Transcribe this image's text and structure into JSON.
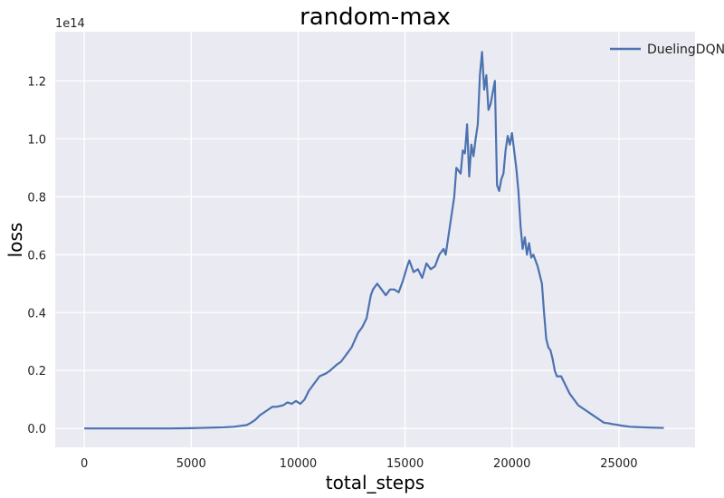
{
  "chart_data": {
    "type": "line",
    "title": "random-max",
    "xlabel": "total_steps",
    "ylabel": "loss",
    "y_offset_label": "1e14",
    "xlim": [
      -1360,
      28560
    ],
    "ylim": [
      -0.065,
      1.37
    ],
    "x_ticks": [
      0,
      5000,
      10000,
      15000,
      20000,
      25000
    ],
    "x_tick_labels": [
      "0",
      "5000",
      "10000",
      "15000",
      "20000",
      "25000"
    ],
    "y_ticks": [
      0.0,
      0.2,
      0.4,
      0.6,
      0.8,
      1.0,
      1.2
    ],
    "y_tick_labels": [
      "0.0",
      "0.2",
      "0.4",
      "0.6",
      "0.8",
      "1.0",
      "1.2"
    ],
    "grid": true,
    "legend_position": "top-right",
    "series": [
      {
        "name": "DuelingDQN",
        "color": "#4c72b0",
        "x": [
          0,
          1000,
          2000,
          3000,
          4000,
          5000,
          5500,
          6000,
          6500,
          7000,
          7300,
          7600,
          7800,
          8000,
          8200,
          8500,
          8800,
          9000,
          9300,
          9500,
          9700,
          9900,
          10100,
          10300,
          10500,
          10800,
          11000,
          11300,
          11500,
          11800,
          12000,
          12300,
          12500,
          12800,
          13000,
          13200,
          13400,
          13500,
          13700,
          13900,
          14100,
          14300,
          14500,
          14700,
          14900,
          15100,
          15200,
          15400,
          15600,
          15800,
          16000,
          16200,
          16400,
          16600,
          16800,
          16900,
          17100,
          17300,
          17400,
          17600,
          17700,
          17800,
          17900,
          18000,
          18100,
          18200,
          18300,
          18400,
          18500,
          18600,
          18700,
          18800,
          18900,
          19000,
          19100,
          19200,
          19300,
          19400,
          19500,
          19600,
          19700,
          19800,
          19900,
          20000,
          20100,
          20200,
          20300,
          20400,
          20500,
          20600,
          20700,
          20800,
          20900,
          21000,
          21100,
          21200,
          21300,
          21400,
          21500,
          21600,
          21700,
          21800,
          21900,
          22000,
          22100,
          22200,
          22300,
          22500,
          22700,
          22900,
          23100,
          23300,
          23500,
          23700,
          23900,
          24100,
          24300,
          24500,
          24700,
          24900,
          25100,
          25300,
          25500,
          25800,
          26100,
          26500,
          27000,
          27100
        ],
        "y": [
          0.0,
          0.0,
          0.0,
          0.0,
          0.0,
          0.001,
          0.002,
          0.003,
          0.004,
          0.006,
          0.009,
          0.012,
          0.02,
          0.03,
          0.045,
          0.06,
          0.075,
          0.075,
          0.08,
          0.09,
          0.085,
          0.095,
          0.085,
          0.1,
          0.13,
          0.16,
          0.18,
          0.19,
          0.2,
          0.22,
          0.23,
          0.26,
          0.28,
          0.33,
          0.35,
          0.38,
          0.46,
          0.48,
          0.5,
          0.48,
          0.46,
          0.48,
          0.48,
          0.47,
          0.51,
          0.56,
          0.58,
          0.54,
          0.55,
          0.52,
          0.57,
          0.55,
          0.56,
          0.6,
          0.62,
          0.6,
          0.7,
          0.8,
          0.9,
          0.88,
          0.96,
          0.95,
          1.05,
          0.87,
          0.98,
          0.94,
          1.0,
          1.05,
          1.22,
          1.3,
          1.17,
          1.22,
          1.1,
          1.12,
          1.16,
          1.2,
          0.84,
          0.82,
          0.86,
          0.88,
          0.96,
          1.01,
          0.98,
          1.02,
          0.96,
          0.9,
          0.82,
          0.7,
          0.62,
          0.66,
          0.6,
          0.64,
          0.59,
          0.6,
          0.58,
          0.56,
          0.53,
          0.5,
          0.4,
          0.31,
          0.28,
          0.27,
          0.24,
          0.2,
          0.18,
          0.18,
          0.18,
          0.15,
          0.12,
          0.1,
          0.08,
          0.07,
          0.06,
          0.05,
          0.04,
          0.03,
          0.02,
          0.018,
          0.015,
          0.013,
          0.01,
          0.008,
          0.006,
          0.005,
          0.004,
          0.003,
          0.002,
          0.002
        ]
      }
    ]
  }
}
